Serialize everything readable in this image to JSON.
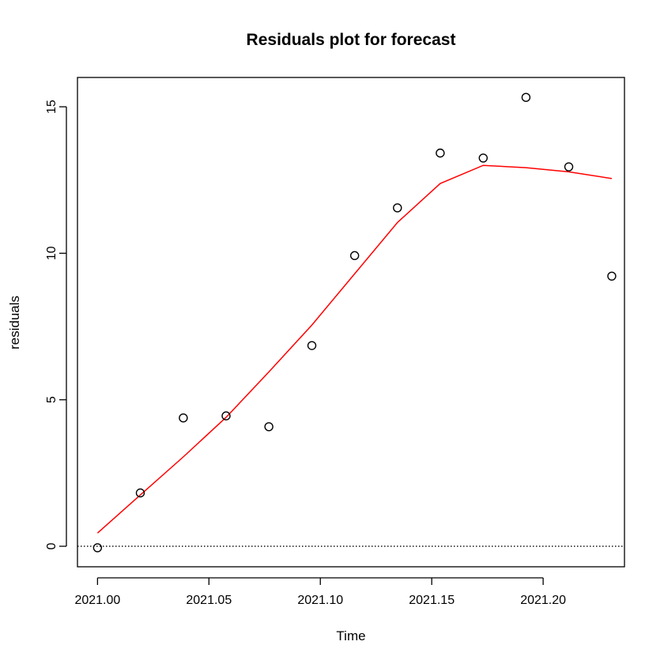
{
  "chart_data": {
    "type": "scatter",
    "title": "Residuals plot for forecast",
    "xlabel": "Time",
    "ylabel": "residuals",
    "xlim": [
      2020.991,
      2021.2365
    ],
    "ylim": [
      -0.7,
      16.0
    ],
    "x_ticks": [
      2021.0,
      2021.05,
      2021.1,
      2021.15,
      2021.2
    ],
    "x_tick_labels": [
      "2021.00",
      "2021.05",
      "2021.10",
      "2021.15",
      "2021.20"
    ],
    "y_ticks": [
      0,
      5,
      10,
      15
    ],
    "y_tick_labels": [
      "0",
      "5",
      "10",
      "15"
    ],
    "grid": false,
    "legend": "none",
    "series": [
      {
        "type": "scatter",
        "marker": "open-circle",
        "color": "#000000",
        "x": [
          2021.0,
          2021.0192,
          2021.0385,
          2021.0577,
          2021.0769,
          2021.0962,
          2021.1154,
          2021.1346,
          2021.1538,
          2021.1731,
          2021.1923,
          2021.2115,
          2021.2308
        ],
        "y": [
          -0.05,
          1.82,
          4.38,
          4.45,
          4.08,
          6.85,
          9.92,
          11.55,
          13.42,
          13.25,
          15.32,
          12.95,
          9.22
        ]
      },
      {
        "type": "line",
        "color": "#ff0000",
        "x": [
          2021.0,
          2021.0192,
          2021.0385,
          2021.0577,
          2021.0769,
          2021.0962,
          2021.1154,
          2021.1346,
          2021.1538,
          2021.1731,
          2021.1923,
          2021.2115,
          2021.2308
        ],
        "y": [
          0.45,
          1.75,
          3.05,
          4.4,
          5.95,
          7.55,
          9.3,
          11.05,
          12.38,
          13.0,
          12.92,
          12.78,
          12.55
        ]
      }
    ],
    "reference_line": {
      "y": 0,
      "style": "dotted",
      "color": "#000000"
    }
  }
}
